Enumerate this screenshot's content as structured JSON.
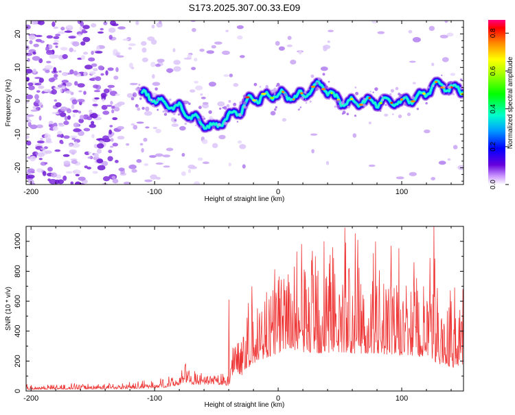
{
  "title": "S173.2025.307.00.33.E09",
  "chart_data": [
    {
      "type": "heatmap",
      "xlabel": "Height of straight line (km)",
      "ylabel": "Frequency (Hz)",
      "xlim": [
        -204,
        150
      ],
      "ylim": [
        -25,
        24
      ],
      "xticks": [
        -200,
        -100,
        0,
        100
      ],
      "yticks": [
        -20,
        -10,
        0,
        10,
        20
      ],
      "trace": {
        "x": [
          -110,
          -100,
          -90,
          -80,
          -70,
          -60,
          -52,
          -45,
          -38,
          -30,
          -25,
          -20,
          -15,
          -10,
          0,
          10,
          20,
          28,
          35,
          40,
          45,
          50,
          55,
          60,
          70,
          80,
          90,
          100,
          110,
          120,
          125,
          130,
          140,
          150
        ],
        "freq": [
          2,
          0.5,
          -1,
          -2,
          -5,
          -7,
          -8,
          -6,
          -4,
          -3,
          0,
          1,
          0.5,
          1.5,
          2,
          1,
          1.5,
          4,
          5,
          3,
          1,
          0,
          -1,
          -0.5,
          0,
          -0.5,
          0,
          -0.5,
          1,
          2,
          5,
          4.5,
          4,
          3
        ]
      },
      "colorbar": {
        "label": "Normalized spectral amplitude",
        "ticks": [
          "0.0",
          "0.2",
          "0.4",
          "0.6",
          "0.8"
        ],
        "range": [
          0,
          0.87
        ]
      }
    },
    {
      "type": "line",
      "xlabel": "Height of straight line (km)",
      "ylabel": "SNR (10 * v/v)",
      "xlim": [
        -204,
        150
      ],
      "ylim": [
        0,
        1100
      ],
      "xticks": [
        -200,
        -100,
        0,
        100
      ],
      "yticks": [
        0,
        200,
        400,
        600,
        800,
        1000
      ],
      "color": "#ee3333",
      "envelope": {
        "x": [
          -204,
          -180,
          -150,
          -120,
          -100,
          -90,
          -80,
          -75,
          -70,
          -60,
          -50,
          -40,
          -35,
          -30,
          -25,
          -20,
          -10,
          0,
          10,
          20,
          30,
          40,
          50,
          60,
          70,
          80,
          90,
          100,
          110,
          120,
          125,
          130,
          140,
          150
        ],
        "base": [
          10,
          12,
          12,
          15,
          20,
          25,
          40,
          60,
          45,
          40,
          45,
          35,
          150,
          100,
          150,
          180,
          220,
          250,
          280,
          260,
          250,
          250,
          260,
          250,
          250,
          250,
          240,
          240,
          230,
          220,
          200,
          180,
          160,
          150
        ],
        "amp": [
          25,
          30,
          30,
          35,
          40,
          50,
          70,
          110,
          80,
          60,
          60,
          50,
          300,
          280,
          350,
          400,
          450,
          480,
          520,
          560,
          600,
          620,
          620,
          600,
          580,
          560,
          540,
          520,
          500,
          480,
          520,
          450,
          420,
          380
        ]
      },
      "peaks": [
        [
          -75,
          180
        ],
        [
          -40,
          610
        ],
        [
          -15,
          520
        ],
        [
          0,
          740
        ],
        [
          30,
          900
        ],
        [
          37,
          1000
        ],
        [
          44,
          960
        ],
        [
          77,
          920
        ],
        [
          110,
          860
        ],
        [
          126,
          1110
        ],
        [
          140,
          600
        ]
      ]
    }
  ]
}
